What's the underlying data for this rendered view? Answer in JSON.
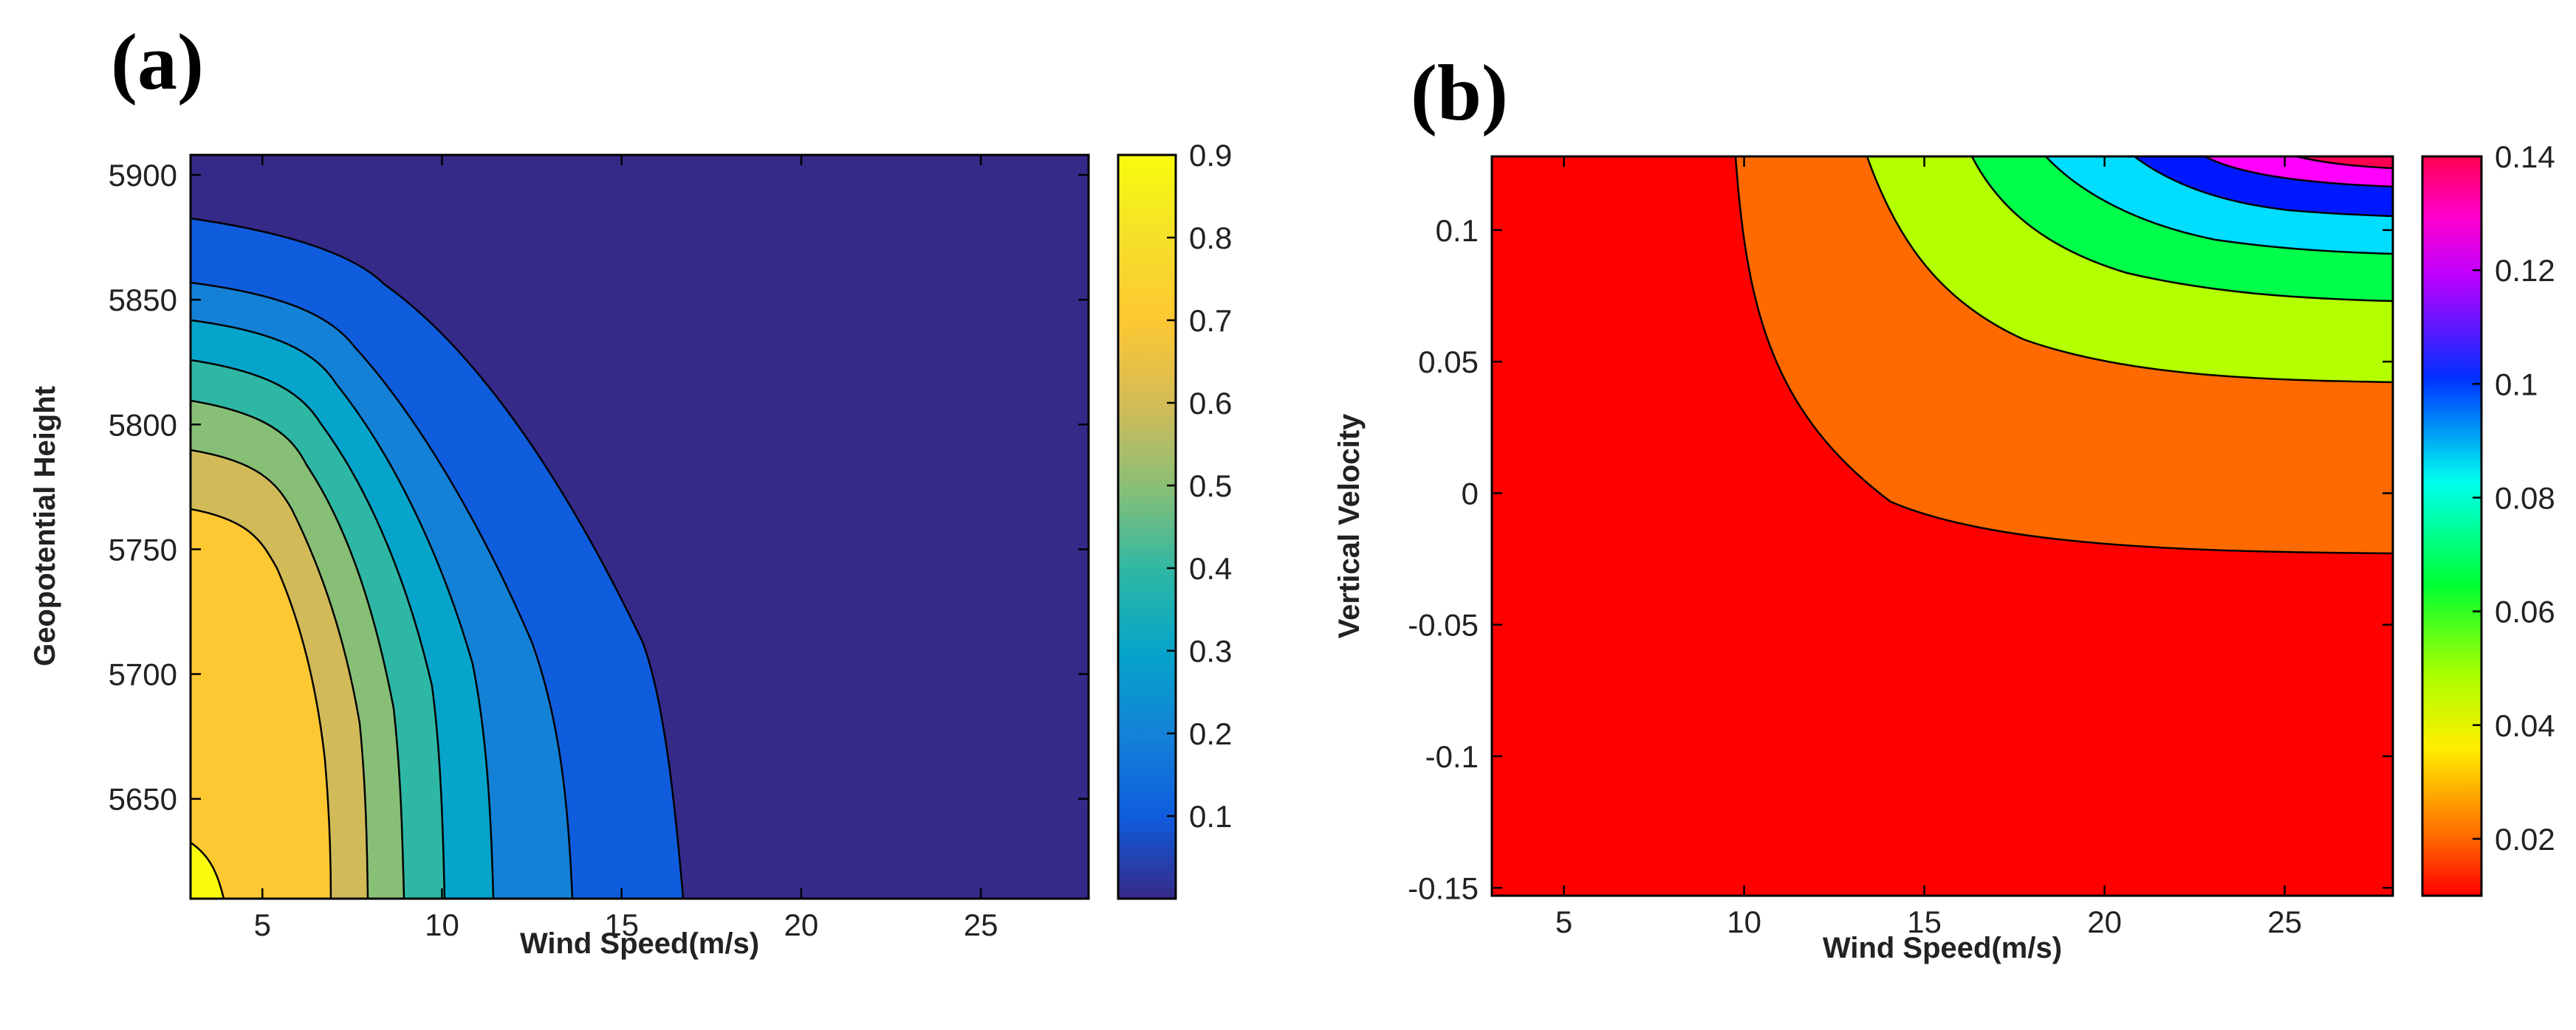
{
  "chart_data": [
    {
      "type": "contour",
      "panel_label": "(a)",
      "xlabel": "Wind Speed(m/s)",
      "ylabel": "Geopotential Height",
      "xlim": [
        3,
        28
      ],
      "ylim": [
        5610,
        5908
      ],
      "x_ticks": [
        "5",
        "10",
        "15",
        "20",
        "25"
      ],
      "y_ticks": [
        "5650",
        "5700",
        "5750",
        "5800",
        "5850",
        "5900"
      ],
      "colorbar": {
        "colormap": "parula",
        "range": [
          0,
          0.9
        ],
        "ticks": [
          "0.1",
          "0.2",
          "0.3",
          "0.4",
          "0.5",
          "0.6",
          "0.7",
          "0.8",
          "0.9"
        ]
      },
      "contour_levels": [
        0.1,
        0.2,
        0.3,
        0.4,
        0.5,
        0.6,
        0.7,
        0.8,
        0.9
      ],
      "region_colors": [
        "#352a87",
        "#0f5cdd",
        "#1481d6",
        "#06a4ca",
        "#2eb7a4",
        "#87bf77",
        "#d1bb59",
        "#fec832",
        "#f9fb0e"
      ]
    },
    {
      "type": "contour",
      "panel_label": "(b)",
      "xlabel": "Wind Speed(m/s)",
      "ylabel": "Vertical Velocity",
      "xlim": [
        3,
        28
      ],
      "ylim": [
        -0.153,
        0.128
      ],
      "x_ticks": [
        "5",
        "10",
        "15",
        "20",
        "25"
      ],
      "y_ticks": [
        "-0.15",
        "-0.1",
        "-0.05",
        "0",
        "0.05",
        "0.1"
      ],
      "colorbar": {
        "colormap": "hsv",
        "range": [
          0.01,
          0.14
        ],
        "ticks": [
          "0.02",
          "0.04",
          "0.06",
          "0.08",
          "0.1",
          "0.12",
          "0.14"
        ]
      },
      "contour_levels": [
        0.02,
        0.04,
        0.06,
        0.08,
        0.1,
        0.12,
        0.14
      ],
      "region_colors": [
        "#ff0000",
        "#ff6a00",
        "#b4ff00",
        "#00ff4a",
        "#00ddff",
        "#0018ff",
        "#ff00ff",
        "#ff0050"
      ]
    }
  ]
}
